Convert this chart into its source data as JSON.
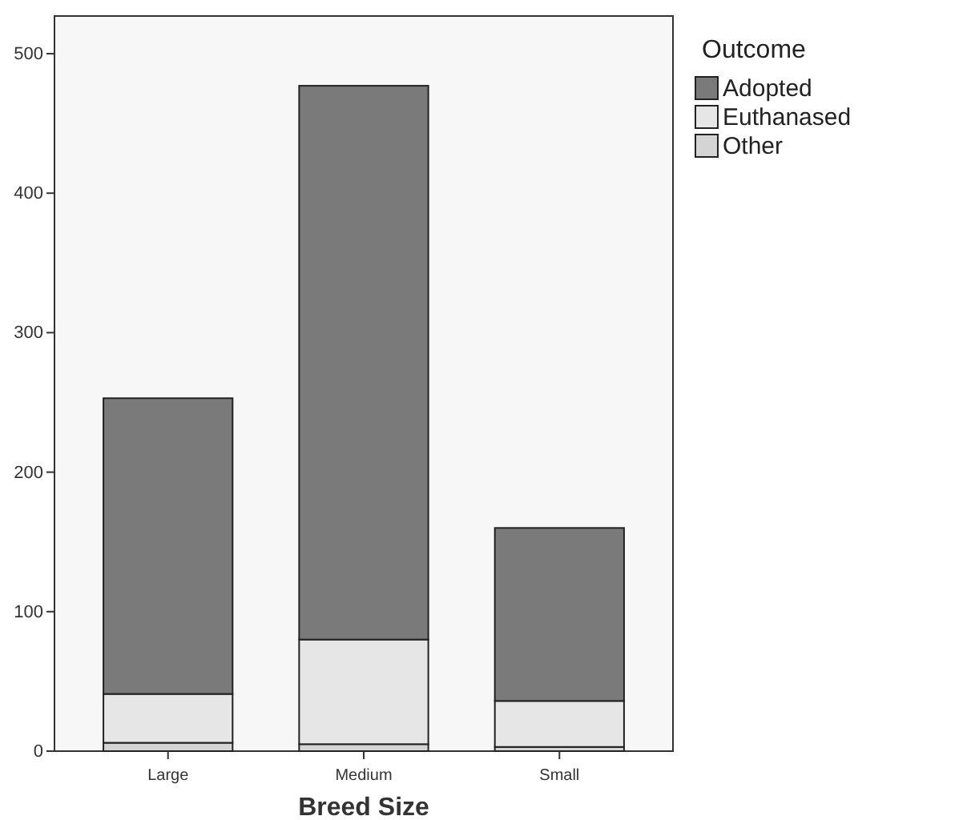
{
  "chart_data": {
    "type": "bar",
    "xlabel": "Breed Size",
    "legend_title": "Outcome",
    "categories": [
      "Large",
      "Medium",
      "Small"
    ],
    "stacked": true,
    "legend": "top right",
    "ylim": [
      0,
      527
    ],
    "yticks": [
      0,
      100,
      200,
      300,
      400,
      500
    ],
    "series": [
      {
        "name": "Other",
        "color": "#d4d4d4",
        "values": [
          6,
          5,
          3
        ]
      },
      {
        "name": "Euthanased",
        "color": "#e6e6e6",
        "values": [
          35,
          75,
          33
        ]
      },
      {
        "name": "Adopted",
        "color": "#7a7a7a",
        "values": [
          212,
          397,
          124
        ]
      }
    ]
  }
}
